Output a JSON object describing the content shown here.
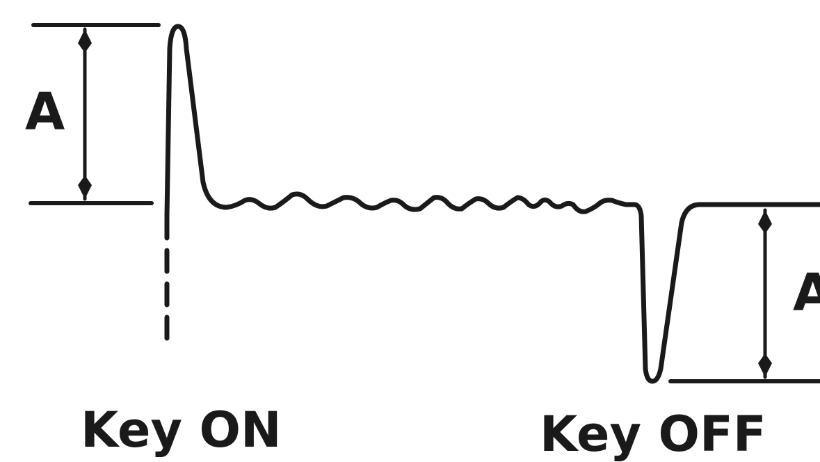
{
  "diagram": {
    "amplitude_label_left": "A",
    "amplitude_label_right": "A",
    "key_on_label": "Key ON",
    "key_off_label": "Key OFF"
  },
  "colors": {
    "ink": "#1a1a1a",
    "background": "#ffffff"
  }
}
